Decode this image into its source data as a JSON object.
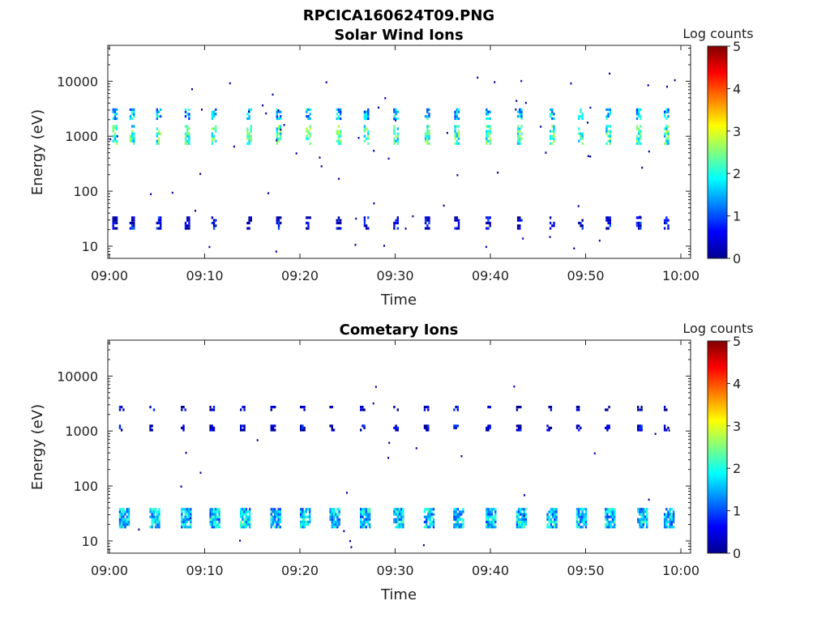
{
  "figure_title": "RPCICA160624T09.PNG",
  "chart_data": [
    {
      "type": "heatmap",
      "title": "Solar Wind Ions",
      "xlabel": "Time",
      "ylabel": "Energy (eV)",
      "x_ticks": [
        "09:00",
        "09:10",
        "09:20",
        "09:30",
        "09:40",
        "09:50",
        "10:00"
      ],
      "xlim": [
        "09:00",
        "10:00"
      ],
      "y_scale": "log",
      "y_ticks": [
        10,
        100,
        1000,
        10000
      ],
      "y_tick_labels": [
        "10",
        "100",
        "1000",
        "10000"
      ],
      "ylim": [
        6,
        45000
      ],
      "colorbar": {
        "label": "Log counts",
        "min": 0,
        "max": 5,
        "ticks": [
          "0",
          "1",
          "2",
          "3",
          "4",
          "5"
        ],
        "colormap": "jet"
      },
      "sweep_start_minutes": [
        0.3,
        2.1,
        4.9,
        7.9,
        10.7,
        14.4,
        17.5,
        20.6,
        23.8,
        26.7,
        29.8,
        33.1,
        36.2,
        39.5,
        42.8,
        46.2,
        49.2,
        52.1,
        55.3,
        58.2
      ],
      "bands": [
        {
          "energy_min_ev": 700,
          "energy_max_ev": 1600,
          "typical_log_counts": 2.1
        },
        {
          "energy_min_ev": 2000,
          "energy_max_ev": 3200,
          "typical_log_counts": 1.5
        },
        {
          "energy_min_ev": 20,
          "energy_max_ev": 35,
          "typical_log_counts": 0.4
        }
      ],
      "grid": false
    },
    {
      "type": "heatmap",
      "title": "Cometary Ions",
      "xlabel": "Time",
      "ylabel": "Energy (eV)",
      "x_ticks": [
        "09:00",
        "09:10",
        "09:20",
        "09:30",
        "09:40",
        "09:50",
        "10:00"
      ],
      "xlim": [
        "09:00",
        "10:00"
      ],
      "y_scale": "log",
      "y_ticks": [
        10,
        100,
        1000,
        10000
      ],
      "y_tick_labels": [
        "10",
        "100",
        "1000",
        "10000"
      ],
      "ylim": [
        6,
        45000
      ],
      "colorbar": {
        "label": "Log counts",
        "min": 0,
        "max": 5,
        "ticks": [
          "0",
          "1",
          "2",
          "3",
          "4",
          "5"
        ],
        "colormap": "jet"
      },
      "sweep_start_minutes": [
        1.0,
        4.2,
        7.5,
        10.5,
        13.7,
        16.9,
        20.0,
        23.1,
        26.3,
        29.8,
        33.0,
        36.1,
        39.5,
        42.7,
        45.9,
        49.0,
        52.0,
        55.4,
        58.2
      ],
      "bands": [
        {
          "energy_min_ev": 17,
          "energy_max_ev": 40,
          "typical_log_counts": 1.6
        },
        {
          "energy_min_ev": 1000,
          "energy_max_ev": 1300,
          "typical_log_counts": 0.3
        },
        {
          "energy_min_ev": 2300,
          "energy_max_ev": 2900,
          "typical_log_counts": 0.2
        }
      ],
      "grid": false
    }
  ]
}
